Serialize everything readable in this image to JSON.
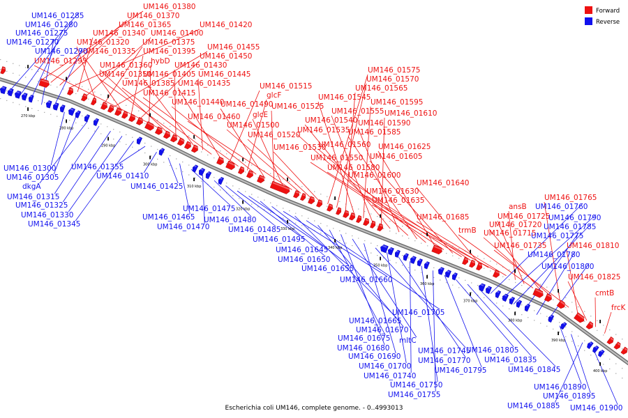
{
  "caption": "Escherichia coli UM146, complete genome. - 0..4993013",
  "legend": [
    {
      "label": "Forward",
      "color": "#ee1111"
    },
    {
      "label": "Reverse",
      "color": "#1111ee"
    }
  ],
  "ticks": [
    "270 kbp",
    "280 kbp",
    "290 kbp",
    "300 kbp",
    "310 kbp",
    "320 kbp",
    "330 kbp",
    "340 kbp",
    "350 kbp",
    "360 kbp",
    "370 kbp",
    "380 kbp",
    "390 kbp",
    "400 kbp"
  ],
  "forward_labels": [
    "UM146_01380",
    "UM146_01370",
    "UM146_01365",
    "UM146_01420",
    "UM146_01340",
    "UM146_01400",
    "UM146_01320",
    "UM146_01375",
    "UM146_01455",
    "UM146_01335",
    "UM146_01395",
    "UM146_01450",
    "hybD",
    "UM146_01295",
    "UM146_01360",
    "UM146_01430",
    "UM146_01350",
    "UM146_01405",
    "UM146_01445",
    "UM146_01385",
    "UM146_01435",
    "UM146_01515",
    "UM146_01415",
    "glcF",
    "UM146_01440",
    "UM146_01490",
    "UM146_01525",
    "glcE",
    "UM146_01460",
    "UM146_01500",
    "UM146_01520",
    "UM146_01530",
    "UM146_01575",
    "UM146_01570",
    "UM146_01565",
    "UM146_01545",
    "UM146_01595",
    "UM146_01555",
    "UM146_01610",
    "UM146_01540",
    "UM146_01590",
    "UM146_01535",
    "UM146_01585",
    "UM146_01560",
    "UM146_01625",
    "UM146_01550",
    "UM146_01605",
    "UM146_01580",
    "UM146_01600",
    "UM146_01640",
    "UM146_01630",
    "UM146_01635",
    "UM146_01685",
    "ansB",
    "UM146_01725",
    "trmB",
    "UM146_01720",
    "UM146_01715",
    "UM146_01765",
    "UM146_01735",
    "UM146_01810",
    "UM146_01825",
    "cmtB",
    "frcK"
  ],
  "reverse_labels": [
    "UM146_01285",
    "UM146_01280",
    "UM146_01275",
    "UM146_01270",
    "UM146_01290",
    "UM146_01300",
    "UM146_01305",
    "dkgA",
    "UM146_01315",
    "UM146_01325",
    "UM146_01330",
    "UM146_01345",
    "UM146_01355",
    "UM146_01410",
    "UM146_01425",
    "UM146_01465",
    "UM146_01475",
    "UM146_01470",
    "UM146_01480",
    "UM146_01485",
    "UM146_01495",
    "UM146_01645",
    "UM146_01650",
    "UM146_01655",
    "UM146_01660",
    "UM146_01665",
    "UM146_01705",
    "UM146_01670",
    "UM146_01675",
    "UM146_01680",
    "mltC",
    "UM146_01690",
    "UM146_01745",
    "UM146_01700",
    "UM146_01770",
    "UM146_01740",
    "UM146_01750",
    "UM146_01755",
    "UM146_01795",
    "UM146_01805",
    "UM146_01835",
    "UM146_01845",
    "UM146_01760",
    "UM146_01790",
    "UM146_01785",
    "UM146_01775",
    "UM146_01780",
    "UM146_01800",
    "UM146_01890",
    "UM146_01895",
    "UM146_01885",
    "UM146_01900"
  ]
}
